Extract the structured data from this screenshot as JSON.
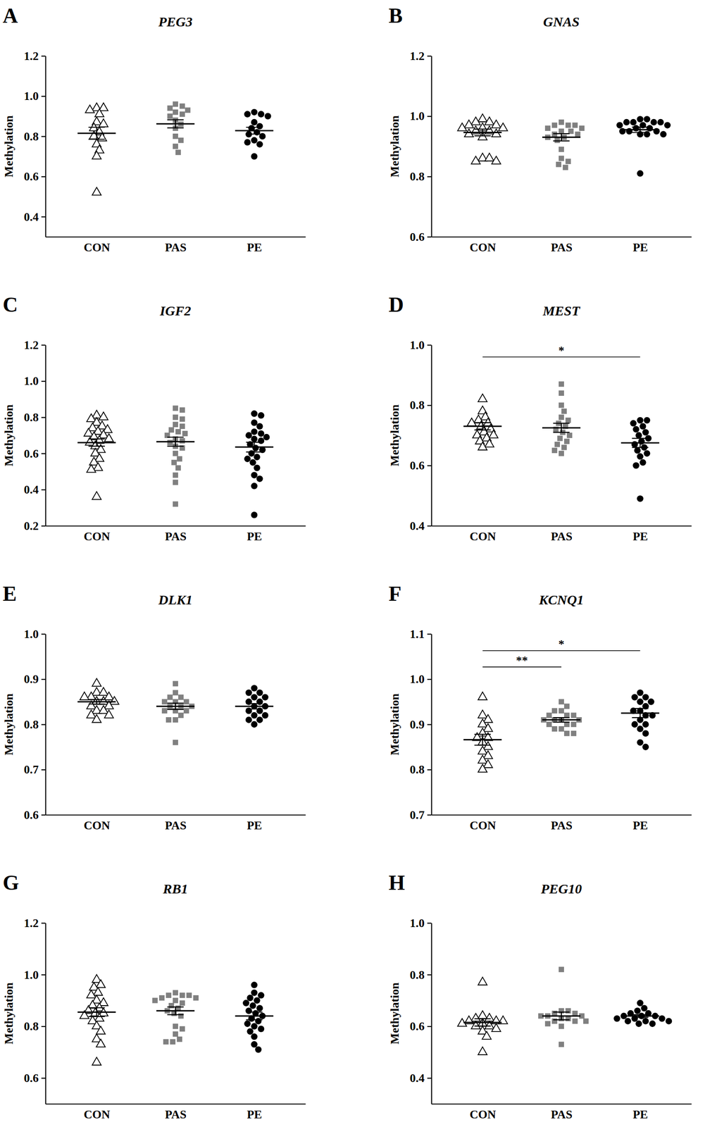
{
  "chart_data": [
    {
      "type": "scatter",
      "panel": "A",
      "title": "PEG3",
      "y_label": "Methylation",
      "ylim": [
        0.3,
        1.2
      ],
      "yticks": [
        0.4,
        0.6,
        0.8,
        {
          "value": 1,
          "label": "1.0"
        },
        1.2
      ],
      "series": [
        {
          "name": "CON",
          "color": "#000000",
          "marker": "triangle-open",
          "mean": 0.815,
          "error": 0.03,
          "values": [
            0.94,
            0.93,
            0.94,
            0.91,
            0.87,
            0.86,
            0.84,
            0.82,
            0.8,
            0.79,
            0.76,
            0.73,
            0.7,
            0.52
          ]
        },
        {
          "name": "PAS",
          "color": "#808080",
          "marker": "square",
          "mean": 0.862,
          "error": 0.02,
          "values": [
            0.96,
            0.95,
            0.94,
            0.93,
            0.92,
            0.91,
            0.9,
            0.88,
            0.86,
            0.84,
            0.8,
            0.78,
            0.75,
            0.72
          ]
        },
        {
          "name": "PE",
          "color": "#000000",
          "marker": "circle",
          "mean": 0.828,
          "error": 0.017,
          "values": [
            0.92,
            0.91,
            0.91,
            0.9,
            0.87,
            0.85,
            0.84,
            0.82,
            0.81,
            0.8,
            0.78,
            0.77,
            0.76,
            0.7
          ]
        }
      ]
    },
    {
      "type": "scatter",
      "panel": "B",
      "title": "GNAS",
      "y_label": "Methylation",
      "ylim": [
        0.6,
        1.2
      ],
      "yticks": [
        0.6,
        0.8,
        {
          "value": 1,
          "label": "1.0"
        },
        1.2
      ],
      "series": [
        {
          "name": "CON",
          "color": "#000000",
          "marker": "triangle-open",
          "mean": 0.946,
          "error": 0.011,
          "values": [
            0.99,
            0.98,
            0.98,
            0.97,
            0.97,
            0.96,
            0.96,
            0.96,
            0.95,
            0.95,
            0.94,
            0.94,
            0.93,
            0.86,
            0.86,
            0.85,
            0.85
          ]
        },
        {
          "name": "PAS",
          "color": "#808080",
          "marker": "square",
          "mean": 0.93,
          "error": 0.012,
          "values": [
            0.98,
            0.97,
            0.97,
            0.97,
            0.96,
            0.96,
            0.95,
            0.95,
            0.94,
            0.94,
            0.93,
            0.93,
            0.92,
            0.89,
            0.86,
            0.85,
            0.84,
            0.83
          ]
        },
        {
          "name": "PE",
          "color": "#000000",
          "marker": "circle",
          "mean": 0.955,
          "error": 0.009,
          "values": [
            0.99,
            0.99,
            0.98,
            0.98,
            0.98,
            0.98,
            0.97,
            0.97,
            0.97,
            0.96,
            0.96,
            0.95,
            0.95,
            0.95,
            0.94,
            0.94,
            0.94,
            0.81
          ]
        }
      ]
    },
    {
      "type": "scatter",
      "panel": "C",
      "title": "IGF2",
      "y_label": "Methylation",
      "ylim": [
        0.2,
        1.2
      ],
      "yticks": [
        0.2,
        0.4,
        0.6,
        0.8,
        {
          "value": 1,
          "label": "1.0"
        },
        1.2
      ],
      "series": [
        {
          "name": "CON",
          "color": "#000000",
          "marker": "triangle-open",
          "mean": 0.66,
          "error": 0.02,
          "values": [
            0.81,
            0.8,
            0.79,
            0.77,
            0.75,
            0.74,
            0.73,
            0.72,
            0.71,
            0.7,
            0.69,
            0.68,
            0.67,
            0.66,
            0.64,
            0.62,
            0.6,
            0.57,
            0.55,
            0.52,
            0.51,
            0.36
          ]
        },
        {
          "name": "PAS",
          "color": "#808080",
          "marker": "square",
          "mean": 0.665,
          "error": 0.025,
          "values": [
            0.85,
            0.84,
            0.8,
            0.79,
            0.76,
            0.75,
            0.73,
            0.72,
            0.71,
            0.7,
            0.68,
            0.67,
            0.66,
            0.64,
            0.63,
            0.6,
            0.57,
            0.55,
            0.52,
            0.48,
            0.44,
            0.32
          ]
        },
        {
          "name": "PE",
          "color": "#000000",
          "marker": "circle",
          "mean": 0.635,
          "error": 0.027,
          "values": [
            0.82,
            0.81,
            0.77,
            0.75,
            0.72,
            0.71,
            0.7,
            0.69,
            0.68,
            0.67,
            0.65,
            0.63,
            0.62,
            0.6,
            0.58,
            0.57,
            0.55,
            0.52,
            0.48,
            0.46,
            0.42,
            0.26
          ]
        }
      ]
    },
    {
      "type": "scatter",
      "panel": "D",
      "title": "MEST",
      "y_label": "Methylation",
      "ylim": [
        0.4,
        1
      ],
      "yticks": [
        0.4,
        0.6,
        0.8,
        {
          "value": 1,
          "label": "1.0"
        }
      ],
      "annotations": [
        {
          "text": "*",
          "groups": [
            "CON",
            "PE"
          ],
          "y": 0.96
        }
      ],
      "series": [
        {
          "name": "CON",
          "color": "#000000",
          "marker": "triangle-open",
          "mean": 0.73,
          "error": 0.012,
          "values": [
            0.82,
            0.78,
            0.76,
            0.75,
            0.74,
            0.74,
            0.73,
            0.72,
            0.71,
            0.7,
            0.7,
            0.69,
            0.68,
            0.67,
            0.66
          ]
        },
        {
          "name": "PAS",
          "color": "#808080",
          "marker": "square",
          "mean": 0.725,
          "error": 0.015,
          "values": [
            0.87,
            0.84,
            0.8,
            0.78,
            0.76,
            0.75,
            0.74,
            0.73,
            0.72,
            0.71,
            0.7,
            0.69,
            0.68,
            0.67,
            0.66,
            0.65,
            0.64
          ]
        },
        {
          "name": "PE",
          "color": "#000000",
          "marker": "circle",
          "mean": 0.675,
          "error": 0.015,
          "values": [
            0.75,
            0.75,
            0.74,
            0.73,
            0.72,
            0.71,
            0.7,
            0.69,
            0.68,
            0.67,
            0.66,
            0.65,
            0.64,
            0.63,
            0.61,
            0.6,
            0.49
          ]
        }
      ]
    },
    {
      "type": "scatter",
      "panel": "E",
      "title": "DLK1",
      "y_label": "Methylation",
      "ylim": [
        0.6,
        1
      ],
      "yticks": [
        0.6,
        0.7,
        0.8,
        0.9,
        {
          "value": 1,
          "label": "1.0"
        }
      ],
      "series": [
        {
          "name": "CON",
          "color": "#000000",
          "marker": "triangle-open",
          "mean": 0.85,
          "error": 0.005,
          "values": [
            0.89,
            0.87,
            0.87,
            0.86,
            0.86,
            0.86,
            0.85,
            0.85,
            0.85,
            0.84,
            0.84,
            0.83,
            0.83,
            0.82,
            0.82,
            0.81
          ]
        },
        {
          "name": "PAS",
          "color": "#808080",
          "marker": "square",
          "mean": 0.84,
          "error": 0.007,
          "values": [
            0.89,
            0.87,
            0.86,
            0.86,
            0.85,
            0.85,
            0.85,
            0.84,
            0.84,
            0.84,
            0.83,
            0.83,
            0.83,
            0.82,
            0.81,
            0.81,
            0.76
          ]
        },
        {
          "name": "PE",
          "color": "#000000",
          "marker": "circle",
          "mean": 0.84,
          "error": 0.006,
          "values": [
            0.88,
            0.87,
            0.87,
            0.86,
            0.86,
            0.85,
            0.85,
            0.84,
            0.84,
            0.83,
            0.83,
            0.82,
            0.82,
            0.81,
            0.81,
            0.8
          ]
        }
      ]
    },
    {
      "type": "scatter",
      "panel": "F",
      "title": "KCNQ1",
      "y_label": "Methylation",
      "ylim": [
        0.7,
        1.1
      ],
      "yticks": [
        0.7,
        0.8,
        0.9,
        {
          "value": 1,
          "label": "1.0"
        },
        1.1
      ],
      "annotations": [
        {
          "text": "**",
          "groups": [
            "CON",
            "PAS"
          ],
          "y": 1.027
        },
        {
          "text": "*",
          "groups": [
            "CON",
            "PE"
          ],
          "y": 1.063
        }
      ],
      "series": [
        {
          "name": "CON",
          "color": "#000000",
          "marker": "triangle-open",
          "mean": 0.866,
          "error": 0.012,
          "values": [
            0.96,
            0.92,
            0.91,
            0.9,
            0.89,
            0.88,
            0.87,
            0.87,
            0.86,
            0.85,
            0.84,
            0.83,
            0.82,
            0.81,
            0.8
          ]
        },
        {
          "name": "PAS",
          "color": "#808080",
          "marker": "square",
          "mean": 0.91,
          "error": 0.005,
          "values": [
            0.95,
            0.94,
            0.93,
            0.93,
            0.92,
            0.92,
            0.92,
            0.91,
            0.91,
            0.91,
            0.91,
            0.9,
            0.9,
            0.9,
            0.89,
            0.89,
            0.88,
            0.88
          ]
        },
        {
          "name": "PE",
          "color": "#000000",
          "marker": "circle",
          "mean": 0.925,
          "error": 0.01,
          "values": [
            0.97,
            0.96,
            0.96,
            0.95,
            0.95,
            0.94,
            0.93,
            0.93,
            0.92,
            0.92,
            0.91,
            0.9,
            0.9,
            0.89,
            0.88,
            0.86,
            0.85
          ]
        }
      ]
    },
    {
      "type": "scatter",
      "panel": "G",
      "title": "RB1",
      "y_label": "Methylation",
      "ylim": [
        0.5,
        1.2
      ],
      "yticks": [
        0.6,
        0.8,
        {
          "value": 1,
          "label": "1.0"
        },
        1.2
      ],
      "series": [
        {
          "name": "CON",
          "color": "#000000",
          "marker": "triangle-open",
          "mean": 0.855,
          "error": 0.017,
          "values": [
            0.98,
            0.96,
            0.95,
            0.93,
            0.92,
            0.9,
            0.89,
            0.88,
            0.87,
            0.86,
            0.85,
            0.85,
            0.84,
            0.83,
            0.82,
            0.8,
            0.78,
            0.75,
            0.73,
            0.66
          ]
        },
        {
          "name": "PAS",
          "color": "#808080",
          "marker": "square",
          "mean": 0.86,
          "error": 0.015,
          "values": [
            0.93,
            0.92,
            0.92,
            0.92,
            0.91,
            0.91,
            0.9,
            0.9,
            0.89,
            0.88,
            0.87,
            0.86,
            0.85,
            0.84,
            0.8,
            0.79,
            0.77,
            0.75,
            0.74,
            0.74
          ]
        },
        {
          "name": "PE",
          "color": "#000000",
          "marker": "circle",
          "mean": 0.84,
          "error": 0.015,
          "values": [
            0.96,
            0.93,
            0.92,
            0.91,
            0.9,
            0.89,
            0.88,
            0.87,
            0.86,
            0.85,
            0.84,
            0.83,
            0.82,
            0.81,
            0.8,
            0.79,
            0.78,
            0.76,
            0.73,
            0.71
          ]
        }
      ]
    },
    {
      "type": "scatter",
      "panel": "H",
      "title": "PEG10",
      "y_label": "Methylation",
      "ylim": [
        0.3,
        1
      ],
      "yticks": [
        0.4,
        0.6,
        0.8,
        {
          "value": 1,
          "label": "1.0"
        }
      ],
      "series": [
        {
          "name": "CON",
          "color": "#000000",
          "marker": "triangle-open",
          "mean": 0.615,
          "error": 0.014,
          "values": [
            0.77,
            0.64,
            0.63,
            0.63,
            0.62,
            0.62,
            0.62,
            0.61,
            0.61,
            0.6,
            0.6,
            0.59,
            0.58,
            0.56,
            0.5
          ]
        },
        {
          "name": "PAS",
          "color": "#808080",
          "marker": "square",
          "mean": 0.64,
          "error": 0.015,
          "values": [
            0.82,
            0.66,
            0.66,
            0.65,
            0.65,
            0.64,
            0.64,
            0.64,
            0.63,
            0.63,
            0.62,
            0.62,
            0.62,
            0.61,
            0.6,
            0.53
          ]
        },
        {
          "name": "PE",
          "color": "#000000",
          "marker": "circle",
          "mean": 0.64,
          "error": 0.005,
          "values": [
            0.69,
            0.67,
            0.66,
            0.65,
            0.65,
            0.64,
            0.64,
            0.64,
            0.63,
            0.63,
            0.63,
            0.62,
            0.62,
            0.62,
            0.61,
            0.61
          ]
        }
      ]
    }
  ]
}
